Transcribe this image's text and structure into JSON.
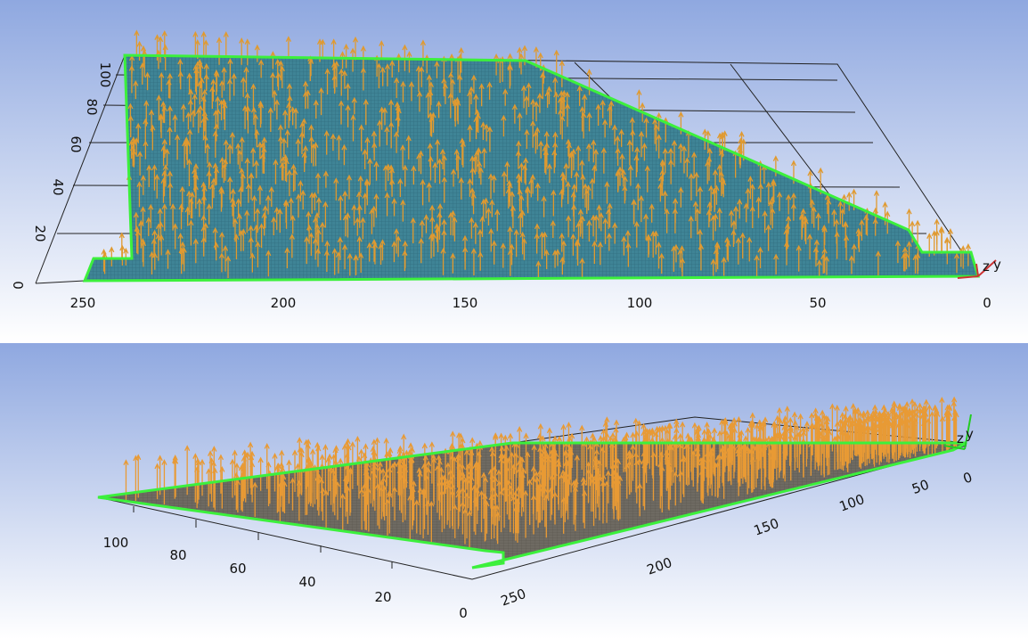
{
  "panels": [
    {
      "x_axis": [
        "250",
        "200",
        "150",
        "100",
        "50",
        "0"
      ],
      "y_axis": [
        "0",
        "20",
        "40",
        "60",
        "80",
        "100"
      ],
      "triad": [
        "z",
        "y"
      ]
    },
    {
      "x_axis": [
        "250",
        "200",
        "150",
        "100",
        "50",
        "0"
      ],
      "y_axis": [
        "100",
        "80",
        "60",
        "40",
        "20",
        "0"
      ],
      "triad": [
        "z",
        "y"
      ]
    }
  ]
}
